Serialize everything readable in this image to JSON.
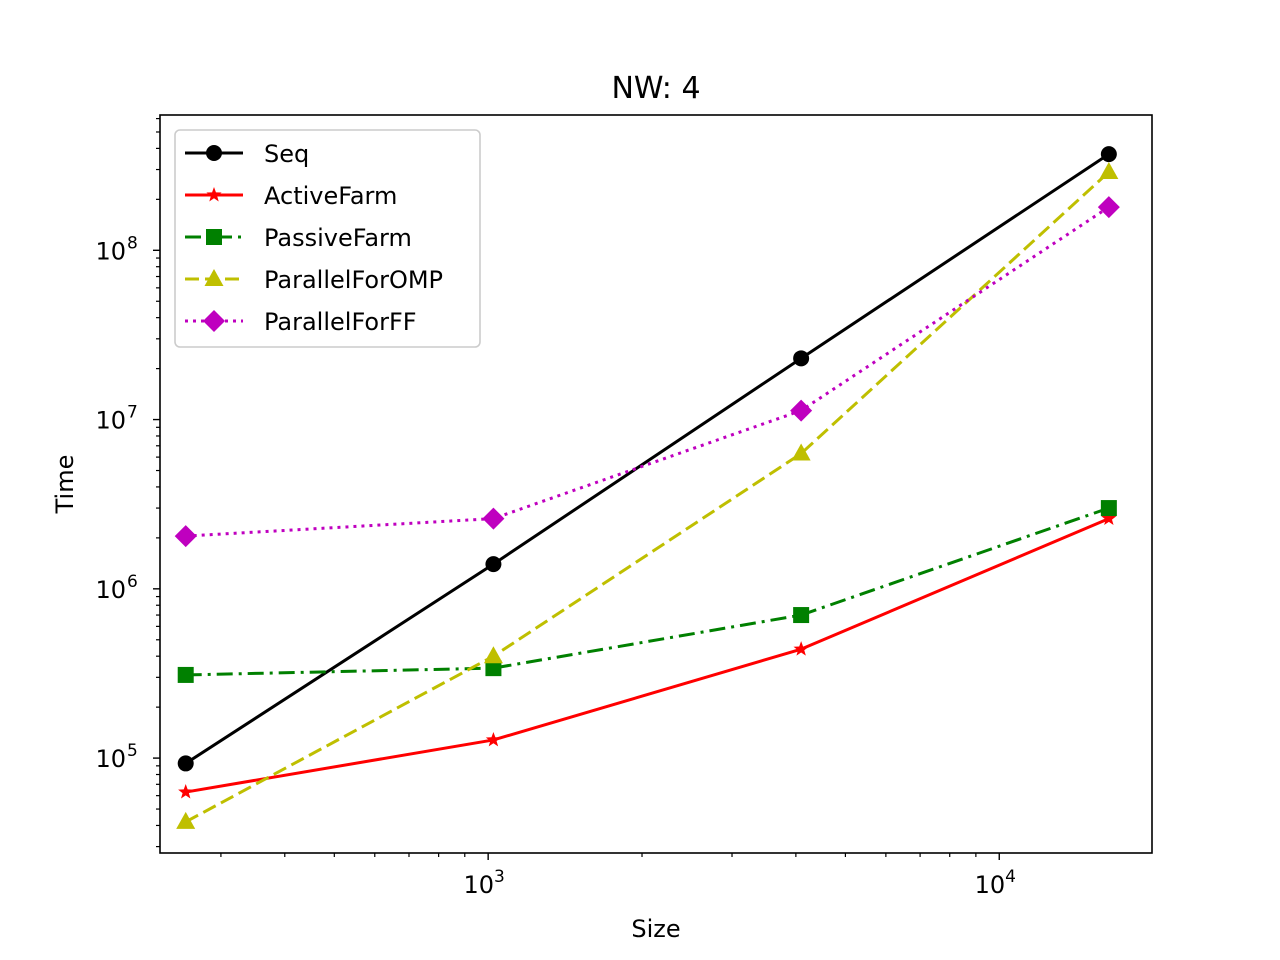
{
  "chart_data": {
    "type": "line",
    "title": "NW: 4",
    "xlabel": "Size",
    "ylabel": "Time",
    "xscale": "log",
    "yscale": "log",
    "xlim": [
      228,
      19900
    ],
    "ylim": [
      27500,
      630000000
    ],
    "x_ticks": [
      {
        "base": "10",
        "exp": "3",
        "value": 1000
      },
      {
        "base": "10",
        "exp": "4",
        "value": 10000
      }
    ],
    "y_ticks": [
      {
        "base": "10",
        "exp": "5",
        "value": 100000
      },
      {
        "base": "10",
        "exp": "6",
        "value": 1000000
      },
      {
        "base": "10",
        "exp": "7",
        "value": 10000000
      },
      {
        "base": "10",
        "exp": "8",
        "value": 100000000
      }
    ],
    "grid": false,
    "legend_position": "upper-left",
    "x": [
      256,
      1024,
      4096,
      16384
    ],
    "series": [
      {
        "name": "Seq",
        "color": "#000000",
        "dash": "solid",
        "marker": "circle",
        "values": [
          93000,
          1400000,
          23000000,
          370000000
        ]
      },
      {
        "name": "ActiveFarm",
        "color": "#ff0000",
        "dash": "solid",
        "marker": "star",
        "values": [
          63000,
          128000,
          440000,
          2600000
        ]
      },
      {
        "name": "PassiveFarm",
        "color": "#008000",
        "dash": "dashdot",
        "marker": "square",
        "values": [
          310000,
          340000,
          700000,
          3000000
        ]
      },
      {
        "name": "ParallelForOMP",
        "color": "#bfbf00",
        "dash": "dashed",
        "marker": "triangle",
        "values": [
          42000,
          400000,
          6300000,
          290000000
        ]
      },
      {
        "name": "ParallelForFF",
        "color": "#bf00bf",
        "dash": "dotted",
        "marker": "diamond",
        "values": [
          2050000,
          2600000,
          11300000,
          180000000
        ]
      }
    ]
  }
}
